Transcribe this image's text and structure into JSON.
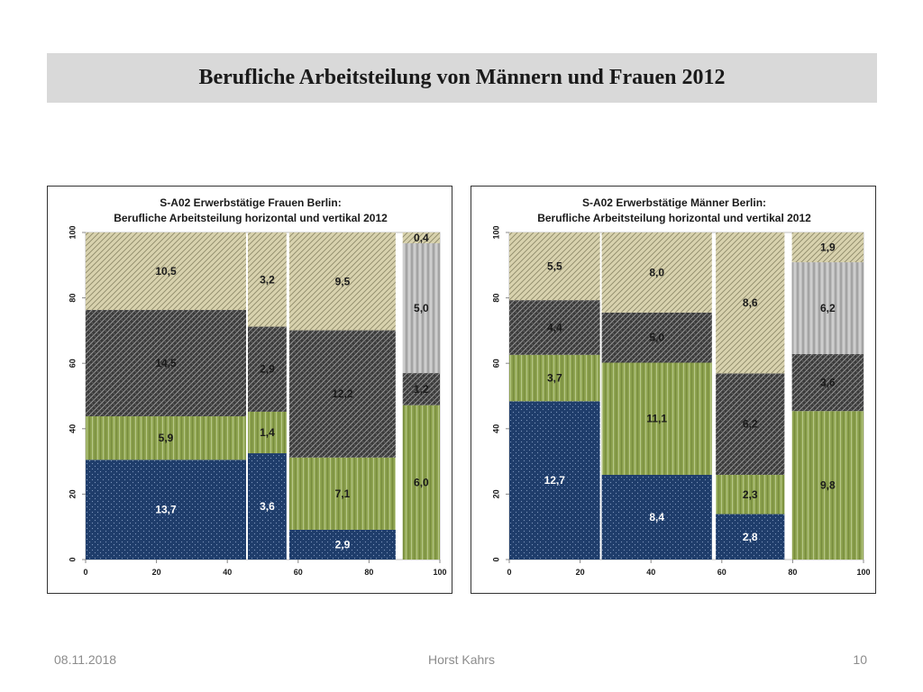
{
  "slide": {
    "title": "Berufliche Arbeitsteilung von Männern und Frauen 2012",
    "footer": {
      "date": "08.11.2018",
      "author": "Horst Kahrs",
      "page": "10"
    }
  },
  "colors": {
    "navy": "#1f3d6b",
    "green": "#8da24f",
    "dark_hatch": "#3a3a3a",
    "beige": "#d8d2ae",
    "grey": "#bcbcbc"
  },
  "chart_data": [
    {
      "type": "mosaic",
      "title_line1": "S-A02 Erwerbstätige Frauen Berlin:",
      "title_line2": "Berufliche Arbeitsteilung horizontal und vertikal 2012",
      "xlim": [
        0,
        100
      ],
      "ylim": [
        0,
        100
      ],
      "x_ticks": [
        "0",
        "20",
        "40",
        "60",
        "80",
        "100"
      ],
      "y_ticks": [
        "0",
        "20",
        "40",
        "60",
        "80",
        "100"
      ],
      "columns": [
        {
          "x0": 0,
          "x1": 45.3,
          "segments": [
            {
              "kind": "navy",
              "value": "13,7",
              "top": 30.5
            },
            {
              "kind": "green",
              "value": "5,9",
              "top": 43.8
            },
            {
              "kind": "dark_hatch",
              "value": "14,5",
              "top": 76.3
            },
            {
              "kind": "beige",
              "value": "10,5",
              "top": 100
            }
          ]
        },
        {
          "x0": 45.8,
          "x1": 56.7,
          "segments": [
            {
              "kind": "navy",
              "value": "3,6",
              "top": 32.5
            },
            {
              "kind": "green",
              "value": "1,4",
              "top": 45.2
            },
            {
              "kind": "dark_hatch",
              "value": "2,9",
              "top": 71.2
            },
            {
              "kind": "beige",
              "value": "3,2",
              "top": 100
            }
          ]
        },
        {
          "x0": 57.5,
          "x1": 87.5,
          "segments": [
            {
              "kind": "navy",
              "value": "2,9",
              "top": 9.1
            },
            {
              "kind": "green",
              "value": "7,1",
              "top": 31.2
            },
            {
              "kind": "dark_hatch",
              "value": "12,2",
              "top": 70.1
            },
            {
              "kind": "beige",
              "value": "9,5",
              "top": 100
            }
          ]
        },
        {
          "x0": 89.5,
          "x1": 100,
          "segments": [
            {
              "kind": "green",
              "value": "6,0",
              "top": 47.2
            },
            {
              "kind": "dark_hatch",
              "value": "1,2",
              "top": 57.0
            },
            {
              "kind": "grey",
              "value": "5,0",
              "top": 96.7
            },
            {
              "kind": "beige",
              "value": "0,4",
              "top": 100
            }
          ]
        }
      ]
    },
    {
      "type": "mosaic",
      "title_line1": "S-A02 Erwerbstätige Männer Berlin:",
      "title_line2": "Berufliche Arbeitsteilung horizontal und vertikal 2012",
      "xlim": [
        0,
        100
      ],
      "ylim": [
        0,
        100
      ],
      "x_ticks": [
        "0",
        "20",
        "40",
        "60",
        "80",
        "100"
      ],
      "y_ticks": [
        "0",
        "20",
        "40",
        "60",
        "80",
        "100"
      ],
      "columns": [
        {
          "x0": 0,
          "x1": 25.6,
          "segments": [
            {
              "kind": "navy",
              "value": "12,7",
              "top": 48.4
            },
            {
              "kind": "green",
              "value": "3,7",
              "top": 62.6
            },
            {
              "kind": "dark_hatch",
              "value": "4,4",
              "top": 79.3
            },
            {
              "kind": "beige",
              "value": "5,5",
              "top": 100
            }
          ]
        },
        {
          "x0": 26.1,
          "x1": 57.2,
          "segments": [
            {
              "kind": "navy",
              "value": "8,4",
              "top": 25.9
            },
            {
              "kind": "green",
              "value": "11,1",
              "top": 60.2
            },
            {
              "kind": "dark_hatch",
              "value": "5,0",
              "top": 75.5
            },
            {
              "kind": "beige",
              "value": "8,0",
              "top": 100
            }
          ]
        },
        {
          "x0": 58.3,
          "x1": 77.7,
          "segments": [
            {
              "kind": "navy",
              "value": "2,8",
              "top": 13.9
            },
            {
              "kind": "green",
              "value": "2,3",
              "top": 25.9
            },
            {
              "kind": "dark_hatch",
              "value": "6,2",
              "top": 56.9
            },
            {
              "kind": "beige",
              "value": "8,6",
              "top": 100
            }
          ]
        },
        {
          "x0": 79.8,
          "x1": 100,
          "segments": [
            {
              "kind": "green",
              "value": "9,8",
              "top": 45.4
            },
            {
              "kind": "dark_hatch",
              "value": "3,6",
              "top": 62.8
            },
            {
              "kind": "grey",
              "value": "6,2",
              "top": 90.9
            },
            {
              "kind": "beige",
              "value": "1,9",
              "top": 100
            }
          ]
        }
      ]
    }
  ]
}
